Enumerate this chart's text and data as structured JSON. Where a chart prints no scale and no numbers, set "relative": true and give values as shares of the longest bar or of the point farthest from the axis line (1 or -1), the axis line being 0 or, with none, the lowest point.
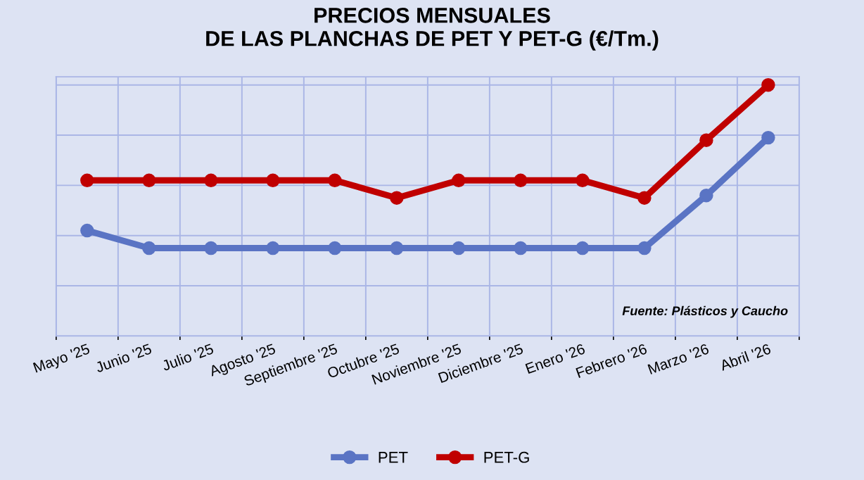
{
  "chart_data": {
    "type": "line",
    "title": "PRECIOS MENSUALES\nDE LAS PLANCHAS DE PET Y PET-G (€/Tm.)",
    "categories": [
      "Mayo '25",
      "Junio '25",
      "Julio '25",
      "Agosto '25",
      "Septiembre '25",
      "Octubre '25",
      "Noviembre '25",
      "Diciembre '25",
      "Enero '26",
      "Febrero '26",
      "Marzo '26",
      "Abril '26"
    ],
    "series": [
      {
        "name": "PET",
        "color": "#5a74c4",
        "values": [
          0.42,
          0.35,
          0.35,
          0.35,
          0.35,
          0.35,
          0.35,
          0.35,
          0.35,
          0.35,
          0.56,
          0.79
        ]
      },
      {
        "name": "PET-G",
        "color": "#c00000",
        "values": [
          0.62,
          0.62,
          0.62,
          0.62,
          0.62,
          0.55,
          0.62,
          0.62,
          0.62,
          0.55,
          0.78,
          1.0
        ]
      }
    ],
    "relative": true,
    "grid": true,
    "legend": "bottom",
    "marker": "circle",
    "line_style": "solid",
    "annotations": [
      "Fuente: Plásticos y Caucho"
    ]
  }
}
